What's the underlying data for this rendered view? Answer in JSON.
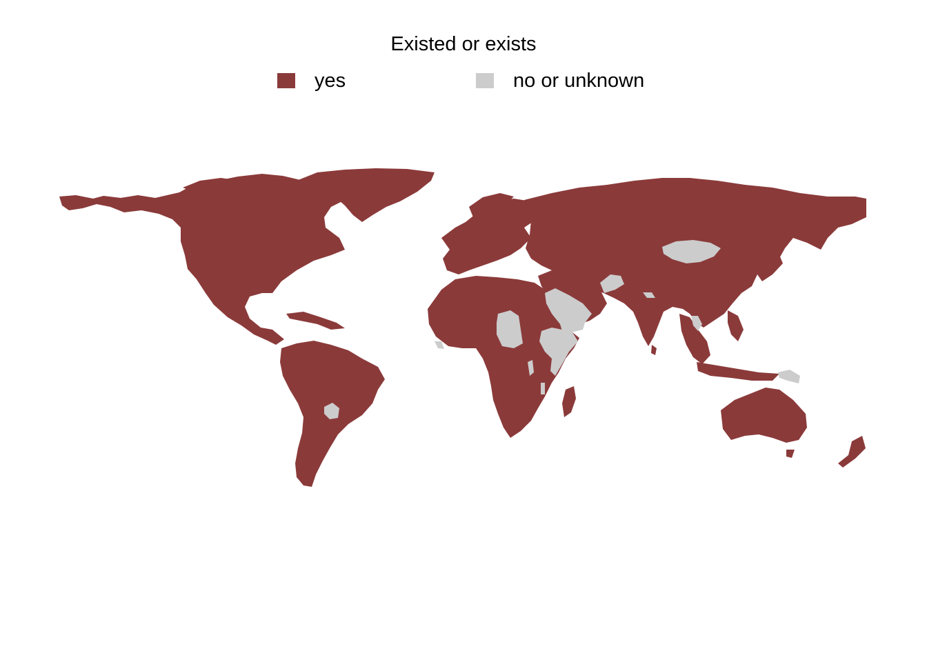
{
  "legend": {
    "title": "Existed or exists",
    "items": [
      {
        "label": "yes",
        "color": "#8B3A3A"
      },
      {
        "label": "no or unknown",
        "color": "#CCCCCC"
      }
    ]
  },
  "map": {
    "projection": "equirectangular world",
    "no_or_unknown_regions": [
      "Mongolia",
      "Afghanistan",
      "Saudi Arabia",
      "Yemen",
      "Chad",
      "Ethiopia",
      "Somalia",
      "Paraguay",
      "Papua New Guinea",
      "Bhutan",
      "Laos",
      "Guinea-Bissau"
    ]
  }
}
